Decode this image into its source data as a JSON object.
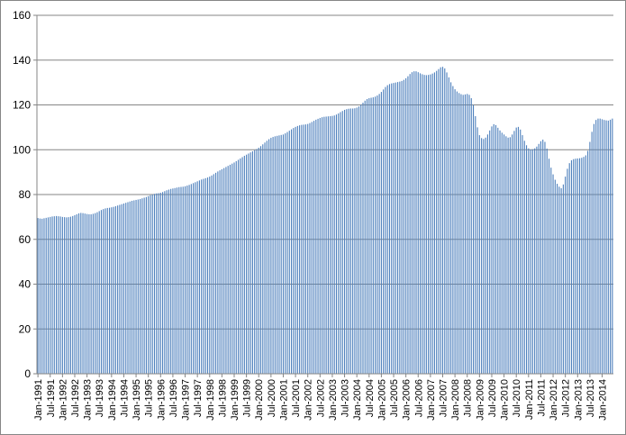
{
  "chart_data": {
    "type": "bar",
    "title": "",
    "xlabel": "",
    "ylabel": "",
    "ylim": [
      0,
      160
    ],
    "yticks": [
      0,
      20,
      40,
      60,
      80,
      100,
      120,
      140,
      160
    ],
    "grid": true,
    "legend": "none",
    "bar_color": "#4f81bd",
    "start": "1991-01",
    "end": "2014-02",
    "x_tick_labels": [
      "Jan-1991",
      "Jul-1991",
      "Jan-1992",
      "Jul-1992",
      "Jan-1993",
      "Jul-1993",
      "Jan-1994",
      "Jul-1994",
      "Jan-1995",
      "Jul-1995",
      "Jan-1996",
      "Jul-1996",
      "Jan-1997",
      "Jul-1997",
      "Jan-1998",
      "Jul-1998",
      "Jan-1999",
      "Jul-1999",
      "Jan-2000",
      "Jul-2000",
      "Jan-2001",
      "Jul-2001",
      "Jan-2002",
      "Jul-2002",
      "Jan-2003",
      "Jul-2003",
      "Jan-2004",
      "Jul-2004",
      "Jan-2005",
      "Jul-2005",
      "Jan-2006",
      "Jul-2006",
      "Jan-2007",
      "Jul-2007",
      "Jan-2008",
      "Jul-2008",
      "Jan-2009",
      "Jul-2009",
      "Jan-2010",
      "Jul-2010",
      "Jan-2011",
      "Jul-2011",
      "Jan-2012",
      "Jul-2012",
      "Jan-2013",
      "Jul-2013",
      "Jan-2014"
    ],
    "values": [
      69.5,
      69.3,
      69.2,
      69.4,
      69.6,
      69.8,
      70.0,
      70.2,
      70.3,
      70.4,
      70.3,
      70.2,
      70.0,
      69.9,
      69.8,
      69.9,
      70.1,
      70.4,
      70.8,
      71.2,
      71.6,
      71.8,
      71.7,
      71.5,
      71.3,
      71.2,
      71.2,
      71.4,
      71.7,
      72.1,
      72.6,
      73.1,
      73.5,
      73.8,
      74.0,
      74.1,
      74.3,
      74.5,
      74.8,
      75.1,
      75.4,
      75.7,
      76.0,
      76.3,
      76.6,
      76.9,
      77.2,
      77.4,
      77.6,
      77.8,
      78.0,
      78.3,
      78.6,
      78.9,
      79.3,
      79.7,
      80.0,
      80.3,
      80.5,
      80.6,
      80.8,
      81.1,
      81.5,
      81.9,
      82.2,
      82.5,
      82.7,
      82.9,
      83.1,
      83.3,
      83.4,
      83.5,
      83.7,
      84.0,
      84.3,
      84.7,
      85.1,
      85.5,
      85.9,
      86.3,
      86.7,
      87.0,
      87.3,
      87.6,
      88.0,
      88.5,
      89.1,
      89.7,
      90.3,
      90.8,
      91.3,
      91.8,
      92.3,
      92.8,
      93.3,
      93.8,
      94.3,
      94.9,
      95.5,
      96.1,
      96.7,
      97.3,
      97.8,
      98.3,
      98.8,
      99.3,
      99.8,
      100.3,
      100.9,
      101.6,
      102.4,
      103.2,
      104.0,
      104.7,
      105.3,
      105.7,
      106.0,
      106.2,
      106.4,
      106.6,
      106.8,
      107.3,
      107.9,
      108.5,
      109.1,
      109.7,
      110.2,
      110.6,
      110.9,
      111.1,
      111.2,
      111.3,
      111.5,
      111.9,
      112.4,
      112.9,
      113.4,
      113.8,
      114.2,
      114.5,
      114.7,
      114.8,
      114.9,
      115.0,
      115.1,
      115.3,
      115.7,
      116.2,
      116.8,
      117.3,
      117.8,
      118.1,
      118.3,
      118.4,
      118.4,
      118.5,
      118.8,
      119.3,
      120.1,
      121.0,
      121.9,
      122.6,
      123.0,
      123.2,
      123.4,
      123.7,
      124.2,
      124.9,
      125.8,
      126.9,
      128.0,
      128.8,
      129.3,
      129.6,
      129.8,
      130.0,
      130.2,
      130.4,
      130.7,
      131.2,
      131.9,
      132.8,
      133.8,
      134.6,
      135.0,
      135.0,
      134.6,
      134.1,
      133.7,
      133.4,
      133.3,
      133.4,
      133.6,
      134.0,
      134.5,
      135.2,
      136.0,
      136.8,
      137.0,
      136.3,
      134.5,
      132.3,
      130.1,
      128.4,
      127.0,
      126.0,
      125.3,
      124.8,
      124.5,
      124.7,
      124.9,
      124.5,
      123.0,
      120.0,
      115.0,
      110.0,
      106.5,
      105.2,
      104.8,
      105.4,
      106.8,
      108.6,
      110.4,
      111.4,
      111.0,
      109.8,
      108.6,
      107.6,
      106.8,
      106.0,
      105.4,
      105.6,
      106.8,
      108.4,
      109.9,
      110.2,
      109.0,
      106.5,
      104.0,
      102.0,
      100.6,
      100.1,
      100.2,
      100.6,
      101.4,
      102.6,
      103.8,
      104.5,
      103.5,
      100.5,
      96.0,
      92.0,
      89.0,
      86.6,
      84.8,
      83.5,
      82.8,
      84.5,
      88.0,
      91.5,
      94.0,
      95.3,
      95.8,
      96.0,
      96.1,
      96.2,
      96.4,
      96.8,
      97.5,
      99.5,
      103.5,
      108.0,
      111.5,
      113.3,
      113.9,
      113.9,
      113.6,
      113.3,
      113.1,
      113.0,
      113.4,
      113.9
    ]
  }
}
